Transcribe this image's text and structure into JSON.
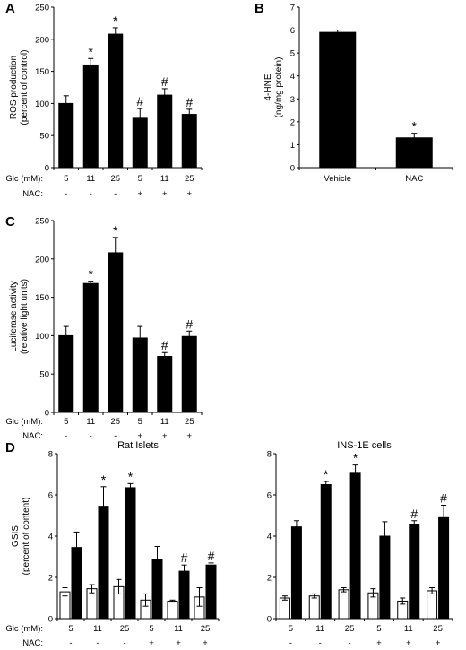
{
  "panel_letters": [
    "A",
    "B",
    "C",
    "D"
  ],
  "chart_data": [
    {
      "panel": "A",
      "type": "bar",
      "title": "",
      "ylabel": "ROS production (percent of control)",
      "ylabel_lines": [
        "ROS production",
        "(percent of control)"
      ],
      "ylim": [
        0,
        250
      ],
      "yticks": [
        0,
        50,
        100,
        150,
        200,
        250
      ],
      "categories": [
        "5",
        "11",
        "25",
        "5",
        "11",
        "25"
      ],
      "row_labels": [
        {
          "label": "Glc (mM):",
          "values": [
            "5",
            "11",
            "25",
            "5",
            "11",
            "25"
          ]
        },
        {
          "label": "NAC:",
          "values": [
            "-",
            "-",
            "-",
            "+",
            "+",
            "+"
          ]
        }
      ],
      "series": [
        {
          "values": [
            100,
            160,
            208,
            77,
            113,
            83
          ],
          "errors": [
            12,
            10,
            10,
            15,
            10,
            8
          ],
          "color": "#000000"
        }
      ],
      "annotations": [
        "",
        "*",
        "*",
        "#",
        "#",
        "#"
      ]
    },
    {
      "panel": "B",
      "type": "bar",
      "title": "",
      "ylabel": "4-HNE (ng/mg protein)",
      "ylabel_lines": [
        "4-HNE",
        "(ng/mg protein)"
      ],
      "ylim": [
        0,
        7
      ],
      "yticks": [
        0,
        1,
        2,
        3,
        4,
        5,
        6,
        7
      ],
      "categories": [
        "Vehicle",
        "NAC"
      ],
      "series": [
        {
          "values": [
            5.9,
            1.3
          ],
          "errors": [
            0.1,
            0.2
          ],
          "color": "#000000"
        }
      ],
      "annotations": [
        "",
        "*"
      ]
    },
    {
      "panel": "C",
      "type": "bar",
      "title": "",
      "ylabel": "Luciferase activity (relative light units)",
      "ylabel_lines": [
        "Luciferase activity",
        "(relative light units)"
      ],
      "ylim": [
        0,
        250
      ],
      "yticks": [
        0,
        50,
        100,
        150,
        200,
        250
      ],
      "categories": [
        "5",
        "11",
        "25",
        "5",
        "11",
        "25"
      ],
      "row_labels": [
        {
          "label": "Glc (mM):",
          "values": [
            "5",
            "11",
            "25",
            "5",
            "11",
            "25"
          ]
        },
        {
          "label": "NAC:",
          "values": [
            "-",
            "-",
            "-",
            "+",
            "+",
            "+"
          ]
        }
      ],
      "series": [
        {
          "values": [
            100,
            168,
            208,
            97,
            73,
            99
          ],
          "errors": [
            12,
            3,
            20,
            15,
            5,
            7
          ],
          "color": "#000000"
        }
      ],
      "annotations": [
        "",
        "*",
        "*",
        "",
        "#",
        "#"
      ]
    },
    {
      "panel": "D",
      "type": "bar",
      "title": "Rat Islets",
      "ylabel": "GSIS (percent of content)",
      "ylabel_lines": [
        "GSIS",
        "(percent of content)"
      ],
      "ylim": [
        0,
        8
      ],
      "yticks": [
        0,
        2,
        4,
        6,
        8
      ],
      "categories": [
        "5",
        "11",
        "25",
        "5",
        "11",
        "25"
      ],
      "row_labels": [
        {
          "label": "Glc (mM):",
          "values": [
            "5",
            "11",
            "25",
            "5",
            "11",
            "25"
          ]
        },
        {
          "label": "NAC:",
          "values": [
            "-",
            "-",
            "-",
            "+",
            "+",
            "+"
          ]
        }
      ],
      "series": [
        {
          "values": [
            1.3,
            1.45,
            1.55,
            0.9,
            0.85,
            1.05
          ],
          "errors": [
            0.2,
            0.2,
            0.35,
            0.3,
            0.05,
            0.45
          ],
          "color": "#ffffff"
        },
        {
          "values": [
            3.45,
            5.45,
            6.35,
            2.85,
            2.3,
            2.6
          ],
          "errors": [
            0.75,
            0.95,
            0.2,
            0.65,
            0.3,
            0.1
          ],
          "color": "#000000"
        }
      ],
      "annotations": [
        "",
        "*",
        "*",
        "",
        "#",
        "#"
      ]
    },
    {
      "panel": "D",
      "type": "bar",
      "title": "INS-1E cells",
      "ylabel": "",
      "ylim": [
        0,
        8
      ],
      "yticks": [
        0,
        2,
        4,
        6,
        8
      ],
      "categories": [
        "5",
        "11",
        "25",
        "5",
        "11",
        "25"
      ],
      "row_labels": [
        {
          "label": "",
          "values": [
            "5",
            "11",
            "25",
            "5",
            "11",
            "25"
          ]
        },
        {
          "label": "",
          "values": [
            "-",
            "-",
            "-",
            "+",
            "+",
            "+"
          ]
        }
      ],
      "series": [
        {
          "values": [
            1.0,
            1.1,
            1.4,
            1.25,
            0.85,
            1.35
          ],
          "errors": [
            0.1,
            0.1,
            0.1,
            0.2,
            0.15,
            0.15
          ],
          "color": "#ffffff"
        },
        {
          "values": [
            4.45,
            6.5,
            7.05,
            4.0,
            4.55,
            4.9
          ],
          "errors": [
            0.3,
            0.15,
            0.4,
            0.7,
            0.2,
            0.6
          ],
          "color": "#000000"
        }
      ],
      "annotations": [
        "",
        "*",
        "*",
        "",
        "#",
        "#"
      ]
    }
  ]
}
